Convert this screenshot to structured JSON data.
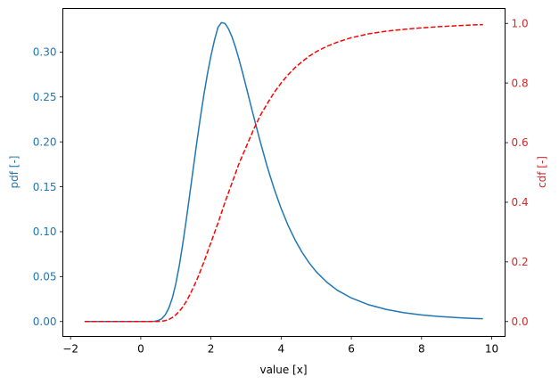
{
  "chart_data": {
    "type": "line",
    "xlabel": "value [x]",
    "ylabel_left": "pdf [-]",
    "ylabel_right": "cdf [-]",
    "xlim": [
      -2.22,
      10.38
    ],
    "ylim_left": [
      -0.0166,
      0.3485
    ],
    "ylim_right": [
      -0.05,
      1.05
    ],
    "x_ticks": [
      -2,
      0,
      2,
      4,
      6,
      8,
      10
    ],
    "y_left_ticks": [
      0.0,
      0.05,
      0.1,
      0.15,
      0.2,
      0.25,
      0.3
    ],
    "y_right_ticks": [
      0.0,
      0.2,
      0.4,
      0.6,
      0.8,
      1.0
    ],
    "grid": false,
    "colors": {
      "left_axis": "#1f77b4",
      "right_axis": "#d62728",
      "pdf_line": "#1f77b4",
      "cdf_line": "#ff0000"
    },
    "series": [
      {
        "axis": "left",
        "style": "solid",
        "x": [
          -1.6,
          -1.0,
          -0.5,
          0.0,
          0.2,
          0.4,
          0.5,
          0.6,
          0.7,
          0.8,
          0.9,
          1.0,
          1.1,
          1.2,
          1.3,
          1.4,
          1.5,
          1.6,
          1.7,
          1.8,
          1.9,
          2.0,
          2.1,
          2.2,
          2.3,
          2.4,
          2.5,
          2.6,
          2.7,
          2.8,
          2.9,
          3.0,
          3.2,
          3.4,
          3.6,
          3.8,
          4.0,
          4.2,
          4.4,
          4.6,
          4.8,
          5.0,
          5.3,
          5.6,
          6.0,
          6.5,
          7.0,
          7.5,
          8.0,
          8.5,
          9.0,
          9.5,
          9.75
        ],
        "y": [
          0,
          0,
          0,
          0,
          0,
          0.0003,
          0.0011,
          0.0032,
          0.0076,
          0.015,
          0.0262,
          0.0423,
          0.0628,
          0.0872,
          0.1142,
          0.1428,
          0.1718,
          0.2003,
          0.2275,
          0.2528,
          0.2757,
          0.2958,
          0.3132,
          0.3275,
          0.3328,
          0.3318,
          0.3258,
          0.3168,
          0.3052,
          0.2918,
          0.2772,
          0.2618,
          0.2308,
          0.2008,
          0.1728,
          0.1478,
          0.1258,
          0.1068,
          0.0906,
          0.0768,
          0.0652,
          0.0554,
          0.0438,
          0.0348,
          0.0262,
          0.0186,
          0.0134,
          0.0098,
          0.0073,
          0.0056,
          0.0044,
          0.0034,
          0.0031
        ]
      },
      {
        "axis": "right",
        "style": "dashed",
        "x": [
          -1.6,
          -1.0,
          -0.5,
          0.0,
          0.3,
          0.5,
          0.6,
          0.7,
          0.8,
          0.9,
          1.0,
          1.1,
          1.2,
          1.3,
          1.4,
          1.5,
          1.6,
          1.8,
          2.0,
          2.2,
          2.4,
          2.6,
          2.8,
          3.0,
          3.2,
          3.4,
          3.6,
          3.8,
          4.0,
          4.2,
          4.4,
          4.6,
          4.8,
          5.0,
          5.3,
          5.6,
          6.0,
          6.5,
          7.0,
          7.5,
          8.0,
          8.5,
          9.0,
          9.5,
          9.75
        ],
        "y": [
          0,
          0,
          0,
          0,
          0,
          0.0003,
          0.001,
          0.003,
          0.007,
          0.0135,
          0.0225,
          0.0345,
          0.0495,
          0.068,
          0.09,
          0.115,
          0.14,
          0.2,
          0.265,
          0.33,
          0.4,
          0.465,
          0.53,
          0.585,
          0.64,
          0.69,
          0.73,
          0.768,
          0.8,
          0.828,
          0.852,
          0.872,
          0.89,
          0.905,
          0.923,
          0.937,
          0.952,
          0.965,
          0.974,
          0.98,
          0.985,
          0.989,
          0.992,
          0.995,
          0.996
        ]
      }
    ]
  }
}
